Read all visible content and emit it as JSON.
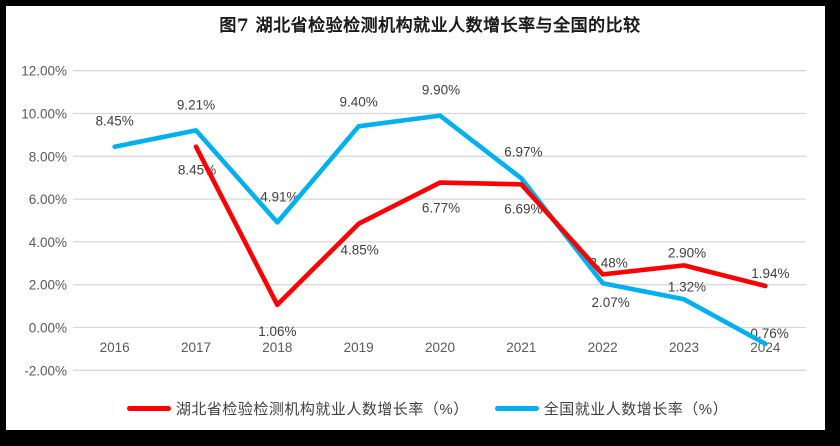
{
  "chart_data": {
    "type": "line",
    "title": "图7 湖北省检验检测机构就业人数增长率与全国的比较",
    "categories": [
      "2016",
      "2017",
      "2018",
      "2019",
      "2020",
      "2021",
      "2022",
      "2023",
      "2024"
    ],
    "series": [
      {
        "name": "湖北省检验检测机构就业人数增长率（%）",
        "color": "#FF0000",
        "values": [
          null,
          8.45,
          1.06,
          4.85,
          6.77,
          6.69,
          2.48,
          2.9,
          1.94
        ],
        "point_labels": [
          null,
          "8.45%",
          "1.06%",
          "4.85%",
          "6.77%",
          "6.69%",
          "2.48%",
          "2.90%",
          "1.94%"
        ]
      },
      {
        "name": "全国就业人数增长率（%）",
        "color": "#00B0F0",
        "values": [
          8.45,
          9.21,
          4.91,
          9.4,
          9.9,
          6.97,
          2.07,
          1.32,
          -0.76
        ],
        "point_labels": [
          "8.45%",
          "9.21%",
          "4.91%",
          "9.40%",
          "9.90%",
          "6.97%",
          "2.07%",
          "1.32%",
          "-0.76%"
        ]
      }
    ],
    "y_axis": {
      "min": -2,
      "max": 12,
      "step": 2,
      "tick_labels": [
        "12.00%",
        "10.00%",
        "8.00%",
        "6.00%",
        "4.00%",
        "2.00%",
        "0.00%",
        "-2.00%"
      ]
    },
    "grid": "horizontal",
    "legend_position": "bottom",
    "data_labels": true,
    "colors": {
      "gridline": "#D9D9D9",
      "axis_label": "#595959",
      "data_label": "#404040"
    }
  }
}
